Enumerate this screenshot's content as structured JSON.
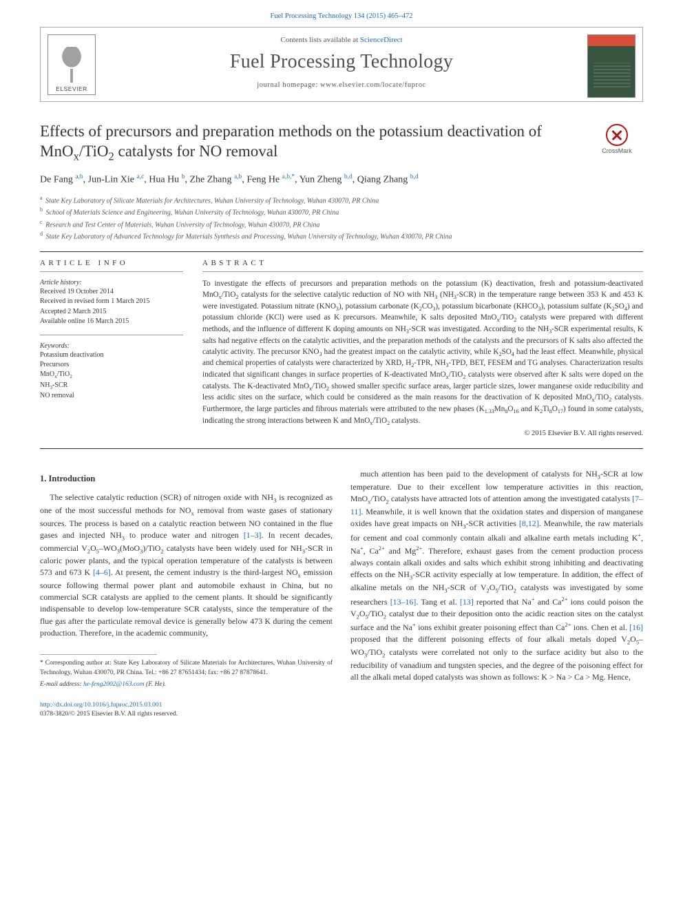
{
  "top_link": "Fuel Processing Technology 134 (2015) 465–472",
  "header": {
    "contents_prefix": "Contents lists available at ",
    "contents_link": "ScienceDirect",
    "journal_title": "Fuel Processing Technology",
    "homepage_label": "journal homepage: www.elsevier.com/locate/fuproc",
    "publisher": "ELSEVIER",
    "crossmark": "CrossMark"
  },
  "article": {
    "title_html": "Effects of precursors and preparation methods on the potassium deactivation of MnO<sub>x</sub>/TiO<sub>2</sub> catalysts for NO removal",
    "authors_html": "De Fang <sup>a,b</sup>, Jun-Lin Xie <sup>a,c</sup>, Hua Hu <sup>b</sup>, Zhe Zhang <sup>a,b</sup>, Feng He <sup>a,b,*</sup>, Yun Zheng <sup>b,d</sup>, Qiang Zhang <sup>b,d</sup>",
    "affiliations": [
      {
        "key": "a",
        "text": "State Key Laboratory of Silicate Materials for Architectures, Wuhan University of Technology, Wuhan 430070, PR China"
      },
      {
        "key": "b",
        "text": "School of Materials Science and Engineering, Wuhan University of Technology, Wuhan 430070, PR China"
      },
      {
        "key": "c",
        "text": "Research and Test Center of Materials, Wuhan University of Technology, Wuhan 430070, PR China"
      },
      {
        "key": "d",
        "text": "State Key Laboratory of Advanced Technology for Materials Synthesis and Processing, Wuhan University of Technology, Wuhan 430070, PR China"
      }
    ]
  },
  "info": {
    "heading": "ARTICLE INFO",
    "history_label": "Article history:",
    "history_lines": [
      "Received 19 October 2014",
      "Received in revised form 1 March 2015",
      "Accepted 2 March 2015",
      "Available online 16 March 2015"
    ],
    "keywords_label": "Keywords:",
    "keywords_html": [
      "Potassium deactivation",
      "Precursors",
      "MnO<sub>x</sub>/TiO<sub>2</sub>",
      "NH<sub>3</sub>-SCR",
      "NO removal"
    ]
  },
  "abstract": {
    "heading": "ABSTRACT",
    "text_html": "To investigate the effects of precursors and preparation methods on the potassium (K) deactivation, fresh and potassium-deactivated MnO<sub>x</sub>/TiO<sub>2</sub> catalysts for the selective catalytic reduction of NO with NH<sub>3</sub> (NH<sub>3</sub>-SCR) in the temperature range between 353 K and 453 K were investigated. Potassium nitrate (KNO<sub>3</sub>), potassium carbonate (K<sub>2</sub>CO<sub>3</sub>), potassium bicarbonate (KHCO<sub>3</sub>), potassium sulfate (K<sub>2</sub>SO<sub>4</sub>) and potassium chloride (KCl) were used as K precursors. Meanwhile, K salts deposited MnO<sub>x</sub>/TiO<sub>2</sub> catalysts were prepared with different methods, and the influence of different K doping amounts on NH<sub>3</sub>-SCR was investigated. According to the NH<sub>3</sub>-SCR experimental results, K salts had negative effects on the catalytic activities, and the preparation methods of the catalysts and the precursors of K salts also affected the catalytic activity. The precursor KNO<sub>3</sub> had the greatest impact on the catalytic activity, while K<sub>2</sub>SO<sub>4</sub> had the least effect. Meanwhile, physical and chemical properties of catalysts were characterized by XRD, H<sub>2</sub>-TPR, NH<sub>3</sub>-TPD, BET, FESEM and TG analyses. Characterization results indicated that significant changes in surface properties of K-deactivated MnO<sub>x</sub>/TiO<sub>2</sub> catalysts were observed after K salts were doped on the catalysts. The K-deactivated MnO<sub>x</sub>/TiO<sub>2</sub> showed smaller specific surface areas, larger particle sizes, lower manganese oxide reducibility and less acidic sites on the surface, which could be considered as the main reasons for the deactivation of K deposited MnO<sub>x</sub>/TiO<sub>2</sub> catalysts. Furthermore, the large particles and fibrous materials were attributed to the new phases (K<sub>1.33</sub>Mn<sub>8</sub>O<sub>16</sub> and K<sub>2</sub>Ti<sub>8</sub>O<sub>17</sub>) found in some catalysts, indicating the strong interactions between K and MnO<sub>x</sub>/TiO<sub>2</sub> catalysts.",
    "copyright": "© 2015 Elsevier B.V. All rights reserved."
  },
  "body": {
    "intro_heading": "1. Introduction",
    "p1_html": "The selective catalytic reduction (SCR) of nitrogen oxide with NH<sub>3</sub> is recognized as one of the most successful methods for NO<sub>x</sub> removal from waste gases of stationary sources. The process is based on a catalytic reaction between NO contained in the flue gases and injected NH<sub>3</sub> to produce water and nitrogen <a class=\"ref-link\" href=\"#\">[1–3]</a>. In recent decades, commercial V<sub>2</sub>O<sub>5</sub>–WO<sub>3</sub>(MoO<sub>3</sub>)/TiO<sub>2</sub> catalysts have been widely used for NH<sub>3</sub>-SCR in caloric power plants, and the typical operation temperature of the catalysts is between 573 and 673 K <a class=\"ref-link\" href=\"#\">[4–6]</a>. At present, the cement industry is the third-largest NO<sub>x</sub> emission source following thermal power plant and automobile exhaust in China, but no commercial SCR catalysts are applied to the cement plants. It should be significantly indispensable to develop low-temperature SCR catalysts, since the temperature of the flue gas after the particulate removal device is generally below 473 K during the cement production. Therefore, in the academic community,",
    "p2_html": "much attention has been paid to the development of catalysts for NH<sub>3</sub>-SCR at low temperature. Due to their excellent low temperature activities in this reaction, MnO<sub>x</sub>/TiO<sub>2</sub> catalysts have attracted lots of attention among the investigated catalysts <a class=\"ref-link\" href=\"#\">[7–11]</a>. Meanwhile, it is well known that the oxidation states and dispersion of manganese oxides have great impacts on NH<sub>3</sub>-SCR activities <a class=\"ref-link\" href=\"#\">[8,12]</a>. Meanwhile, the raw materials for cement and coal commonly contain alkali and alkaline earth metals including K<sup>+</sup>, Na<sup>+</sup>, Ca<sup>2+</sup> and Mg<sup>2+</sup>. Therefore, exhaust gases from the cement production process always contain alkali oxides and salts which exhibit strong inhibiting and deactivating effects on the NH<sub>3</sub>-SCR activity especially at low temperature. In addition, the effect of alkaline metals on the NH<sub>3</sub>-SCR of V<sub>2</sub>O<sub>5</sub>/TiO<sub>2</sub> catalysts was investigated by some researchers <a class=\"ref-link\" href=\"#\">[13–16]</a>. Tang et al. <a class=\"ref-link\" href=\"#\">[13]</a> reported that Na<sup>+</sup> and Ca<sup>2+</sup> ions could poison the V<sub>2</sub>O<sub>5</sub>/TiO<sub>2</sub> catalyst due to their deposition onto the acidic reaction sites on the catalyst surface and the Na<sup>+</sup> ions exhibit greater poisoning effect than Ca<sup>2+</sup> ions. Chen et al. <a class=\"ref-link\" href=\"#\">[16]</a> proposed that the different poisoning effects of four alkali metals doped V<sub>2</sub>O<sub>5</sub>–WO<sub>3</sub>/TiO<sub>2</sub> catalysts were correlated not only to the surface acidity but also to the reducibility of vanadium and tungsten species, and the degree of the poisoning effect for all the alkali metal doped catalysts was shown as follows: K &gt; Na &gt; Ca &gt; Mg. Hence,"
  },
  "footer": {
    "corresponding_html": "* Corresponding author at: State Key Laboratory of Silicate Materials for Architectures, Wuhan University of Technology, Wuhan 430070, PR China. Tel.: +86 27 87651434; fax: +86 27 87878641.",
    "email_label": "E-mail address:",
    "email": "he-feng2002@163.com",
    "email_person": "(F. He).",
    "doi": "http://dx.doi.org/10.1016/j.fuproc.2015.03.001",
    "issn_line": "0378-3820/© 2015 Elsevier B.V. All rights reserved."
  },
  "colors": {
    "link": "#1a6bb5",
    "text": "#333333",
    "rule": "#333333",
    "crossmark_red": "#b11",
    "cover_top": "#d84e3a",
    "cover_body": "#36543e"
  },
  "typography": {
    "body_pt": 11.9,
    "title_pt": 23,
    "journal_pt": 28,
    "abstract_pt": 11.2,
    "info_pt": 10
  }
}
